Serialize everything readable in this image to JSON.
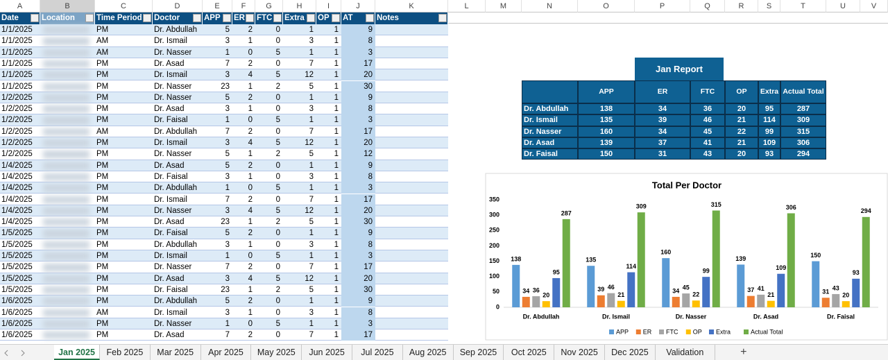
{
  "column_letters": [
    "A",
    "B",
    "C",
    "D",
    "E",
    "F",
    "G",
    "H",
    "I",
    "J",
    "K",
    "L",
    "M",
    "N",
    "O",
    "P",
    "Q",
    "R",
    "S",
    "T",
    "U",
    "V"
  ],
  "data_table": {
    "headers": [
      "Date",
      "Location",
      "Time Period",
      "Doctor",
      "APP",
      "ER",
      "FTC",
      "Extra",
      "OP",
      "AT",
      "Notes"
    ],
    "rows": [
      [
        "1/1/2025",
        "PM",
        "Dr. Abdullah",
        5,
        2,
        0,
        1,
        1,
        9
      ],
      [
        "1/1/2025",
        "AM",
        "Dr. Ismail",
        3,
        1,
        0,
        3,
        1,
        8
      ],
      [
        "1/1/2025",
        "AM",
        "Dr. Nasser",
        1,
        0,
        5,
        1,
        1,
        3
      ],
      [
        "1/1/2025",
        "PM",
        "Dr. Asad",
        7,
        2,
        0,
        7,
        1,
        17
      ],
      [
        "1/1/2025",
        "PM",
        "Dr. Ismail",
        3,
        4,
        5,
        12,
        1,
        20
      ],
      [
        "1/1/2025",
        "PM",
        "Dr. Nasser",
        23,
        1,
        2,
        5,
        1,
        30
      ],
      [
        "1/2/2025",
        "PM",
        "Dr. Nasser",
        5,
        2,
        0,
        1,
        1,
        9
      ],
      [
        "1/2/2025",
        "PM",
        "Dr. Asad",
        3,
        1,
        0,
        3,
        1,
        8
      ],
      [
        "1/2/2025",
        "PM",
        "Dr. Faisal",
        1,
        0,
        5,
        1,
        1,
        3
      ],
      [
        "1/2/2025",
        "AM",
        "Dr. Abdullah",
        7,
        2,
        0,
        7,
        1,
        17
      ],
      [
        "1/2/2025",
        "PM",
        "Dr. Ismail",
        3,
        4,
        5,
        12,
        1,
        20
      ],
      [
        "1/2/2025",
        "PM",
        "Dr. Nasser",
        5,
        1,
        2,
        5,
        1,
        12
      ],
      [
        "1/4/2025",
        "PM",
        "Dr. Asad",
        5,
        2,
        0,
        1,
        1,
        9
      ],
      [
        "1/4/2025",
        "PM",
        "Dr. Faisal",
        3,
        1,
        0,
        3,
        1,
        8
      ],
      [
        "1/4/2025",
        "PM",
        "Dr. Abdullah",
        1,
        0,
        5,
        1,
        1,
        3
      ],
      [
        "1/4/2025",
        "PM",
        "Dr. Ismail",
        7,
        2,
        0,
        7,
        1,
        17
      ],
      [
        "1/4/2025",
        "PM",
        "Dr. Nasser",
        3,
        4,
        5,
        12,
        1,
        20
      ],
      [
        "1/4/2025",
        "PM",
        "Dr. Asad",
        23,
        1,
        2,
        5,
        1,
        30
      ],
      [
        "1/5/2025",
        "PM",
        "Dr. Faisal",
        5,
        2,
        0,
        1,
        1,
        9
      ],
      [
        "1/5/2025",
        "PM",
        "Dr. Abdullah",
        3,
        1,
        0,
        3,
        1,
        8
      ],
      [
        "1/5/2025",
        "PM",
        "Dr. Ismail",
        1,
        0,
        5,
        1,
        1,
        3
      ],
      [
        "1/5/2025",
        "PM",
        "Dr. Nasser",
        7,
        2,
        0,
        7,
        1,
        17
      ],
      [
        "1/5/2025",
        "PM",
        "Dr. Asad",
        3,
        4,
        5,
        12,
        1,
        20
      ],
      [
        "1/5/2025",
        "PM",
        "Dr. Faisal",
        23,
        1,
        2,
        5,
        1,
        30
      ],
      [
        "1/6/2025",
        "PM",
        "Dr. Abdullah",
        5,
        2,
        0,
        1,
        1,
        9
      ],
      [
        "1/6/2025",
        "AM",
        "Dr. Ismail",
        3,
        1,
        0,
        3,
        1,
        8
      ],
      [
        "1/6/2025",
        "PM",
        "Dr. Nasser",
        1,
        0,
        5,
        1,
        1,
        3
      ],
      [
        "1/6/2025",
        "PM",
        "Dr. Asad",
        7,
        2,
        0,
        7,
        1,
        17
      ]
    ]
  },
  "report": {
    "title": "Jan Report",
    "headers": [
      "APP",
      "ER",
      "FTC",
      "OP",
      "Extra",
      "Actual Total"
    ],
    "rows": [
      {
        "doctor": "Dr. Abdullah",
        "values": [
          138,
          34,
          36,
          20,
          95,
          287
        ]
      },
      {
        "doctor": "Dr. Ismail",
        "values": [
          135,
          39,
          46,
          21,
          114,
          309
        ]
      },
      {
        "doctor": "Dr. Nasser",
        "values": [
          160,
          34,
          45,
          22,
          99,
          315
        ]
      },
      {
        "doctor": "Dr. Asad",
        "values": [
          139,
          37,
          41,
          21,
          109,
          306
        ]
      },
      {
        "doctor": "Dr. Faisal",
        "values": [
          150,
          31,
          43,
          20,
          93,
          294
        ]
      }
    ]
  },
  "chart_data": {
    "type": "bar",
    "title": "Total Per Doctor",
    "categories": [
      "Dr. Abdullah",
      "Dr. Ismail",
      "Dr. Nasser",
      "Dr. Asad",
      "Dr. Faisal"
    ],
    "series": [
      {
        "name": "APP",
        "color": "#5b9bd5",
        "values": [
          138,
          135,
          160,
          139,
          150
        ]
      },
      {
        "name": "ER",
        "color": "#ed7d31",
        "values": [
          34,
          39,
          34,
          37,
          31
        ]
      },
      {
        "name": "FTC",
        "color": "#a5a5a5",
        "values": [
          36,
          46,
          45,
          41,
          43
        ]
      },
      {
        "name": "OP",
        "color": "#ffc000",
        "values": [
          20,
          21,
          22,
          21,
          20
        ]
      },
      {
        "name": "Extra",
        "color": "#4472c4",
        "values": [
          95,
          114,
          99,
          109,
          93
        ]
      },
      {
        "name": "Actual Total",
        "color": "#70ad47",
        "values": [
          287,
          309,
          315,
          306,
          294
        ]
      }
    ],
    "ylim": [
      0,
      350
    ],
    "yticks": [
      0,
      50,
      100,
      150,
      200,
      250,
      300,
      350
    ],
    "legend": "bottom"
  },
  "sheet_tabs": [
    "Jan 2025",
    "Feb 2025",
    "Mar 2025",
    "Apr 2025",
    "May 2025",
    "Jun 2025",
    "Jul 2025",
    "Aug 2025",
    "Sep 2025",
    "Oct 2025",
    "Nov 2025",
    "Dec 2025",
    "Validation"
  ],
  "add_sheet": "+"
}
